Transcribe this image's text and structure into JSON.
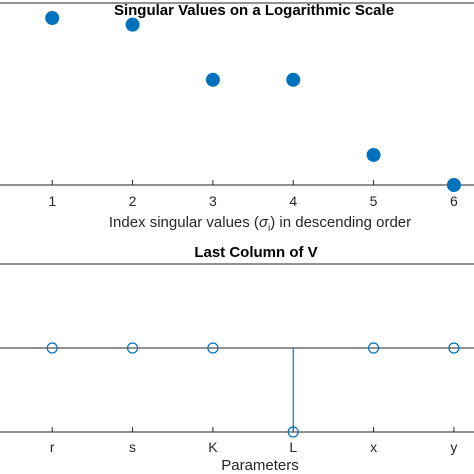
{
  "chart_data": [
    {
      "type": "scatter",
      "title": "Singular Values on a Logarithmic Scale",
      "xlabel_prefix": "Index singular values (",
      "xlabel_symbol": "σ",
      "xlabel_sub": "i",
      "xlabel_suffix": ") in descending order",
      "x": [
        1,
        2,
        3,
        4,
        5,
        6
      ],
      "y_relative_log": [
        1.0,
        0.96,
        0.63,
        0.63,
        0.18,
        0.0
      ],
      "xlim": [
        0.35,
        6.25
      ],
      "yscale": "log",
      "x_ticks": [
        "1",
        "2",
        "3",
        "4",
        "5",
        "6"
      ],
      "marker": "filled-circle",
      "color": "#0072BD"
    },
    {
      "type": "stem",
      "title": "Last Column of V",
      "xlabel": "Parameters",
      "categories": [
        "r",
        "s",
        "K",
        "L",
        "x",
        "y"
      ],
      "values": [
        0,
        0,
        0,
        -1,
        0,
        0
      ],
      "xlim": [
        0.35,
        6.25
      ],
      "marker": "open-circle",
      "color": "#0072BD"
    }
  ]
}
